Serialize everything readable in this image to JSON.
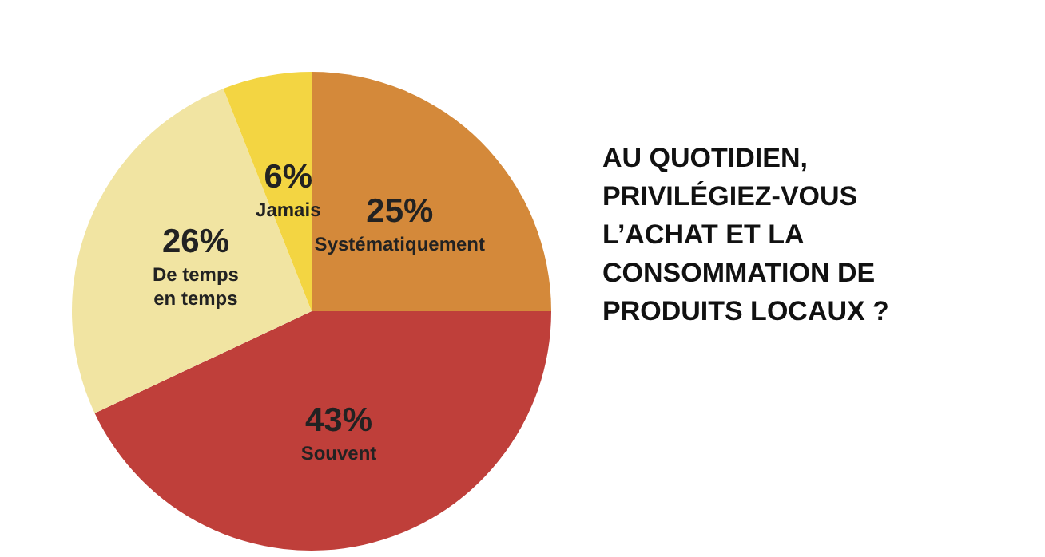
{
  "chart_data": {
    "type": "pie",
    "title": "AU QUOTIDIEN, PRIVILÉGIEZ-VOUS L’ACHAT ET LA CONSOMMATION DE PRODUITS LOCAUX ?",
    "categories": [
      "Systématiquement",
      "Souvent",
      "De temps en temps",
      "Jamais"
    ],
    "values": [
      25,
      43,
      26,
      6
    ],
    "colors": [
      "#d4893a",
      "#bf3f3a",
      "#f1e4a2",
      "#f3d542"
    ],
    "value_labels": [
      "25%",
      "43%",
      "26%",
      "6%"
    ],
    "legend": false
  }
}
